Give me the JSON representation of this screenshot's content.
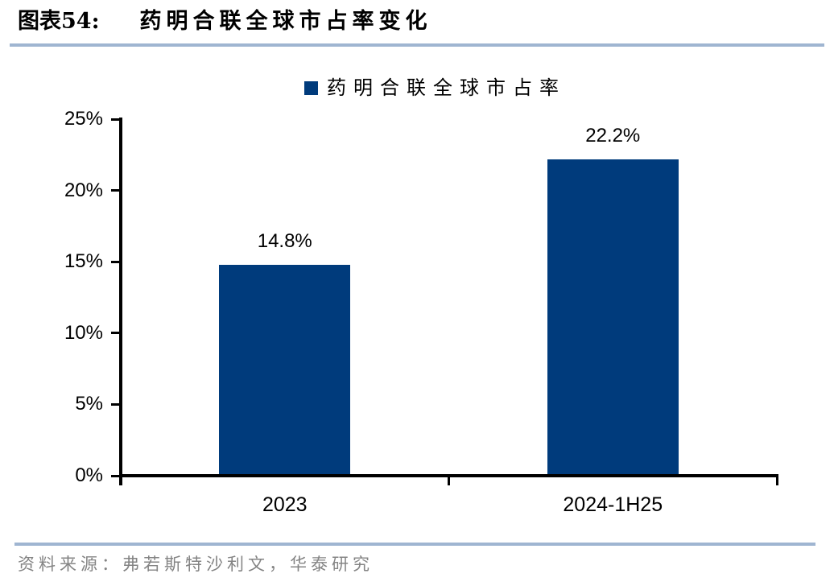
{
  "header": {
    "figure_label": "图表54:",
    "figure_title": "药明合联全球市占率变化"
  },
  "legend": {
    "label": "药明合联全球市占率"
  },
  "chart_data": {
    "type": "bar",
    "title": "药明合联全球市占率变化",
    "categories": [
      "2023",
      "2024-1H25"
    ],
    "series": [
      {
        "name": "药明合联全球市占率",
        "values": [
          14.8,
          22.2
        ]
      }
    ],
    "value_labels": [
      "14.8%",
      "22.2%"
    ],
    "xlabel": "",
    "ylabel": "",
    "ylim": [
      0,
      25
    ],
    "ytick_labels": [
      "0%",
      "5%",
      "10%",
      "15%",
      "20%",
      "25%"
    ],
    "grid": false,
    "legend_position": "top"
  },
  "colors": {
    "bar": "#003B7C",
    "divider": "#9FB5D1",
    "axis": "#000000",
    "source_text": "#848484"
  },
  "footer": {
    "source": "资料来源：弗若斯特沙利文，华泰研究"
  }
}
